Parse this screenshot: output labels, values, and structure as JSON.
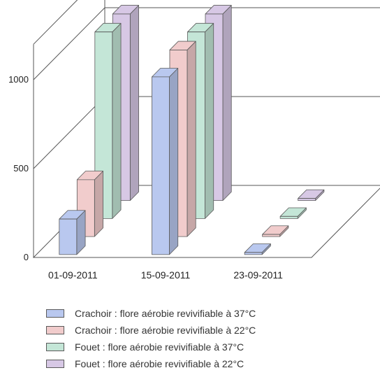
{
  "chart_data": {
    "type": "bar",
    "categories": [
      "01-09-2011",
      "15-09-2011",
      "23-09-2011"
    ],
    "ylim": [
      0,
      1200
    ],
    "yticks": [
      0,
      500,
      1000
    ],
    "grid": true,
    "legend_position": "bottom",
    "series": [
      {
        "name": "Crachoir : flore aérobie revivifiable à 37°C",
        "color": "#b9c8ef",
        "values": [
          200,
          1000,
          12
        ]
      },
      {
        "name": "Crachoir : flore aérobie revivifiable à 22°C",
        "color": "#f1cccc",
        "values": [
          320,
          1050,
          12
        ]
      },
      {
        "name": "Fouet : flore aérobie revivifiable à 37°C",
        "color": "#c4e6d7",
        "values": [
          1050,
          1050,
          12
        ]
      },
      {
        "name": "Fouet : flore aérobie revivifiable à 22°C",
        "color": "#d7c8e5",
        "values": [
          1050,
          1050,
          12
        ]
      }
    ]
  }
}
